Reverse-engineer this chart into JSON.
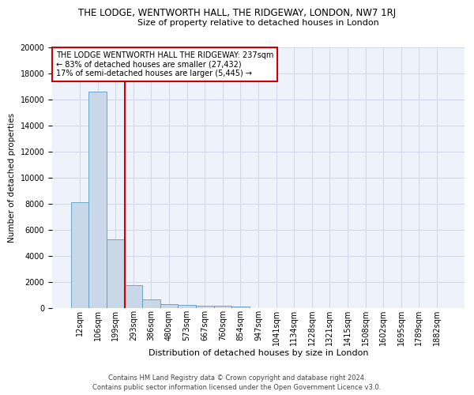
{
  "title": "THE LODGE, WENTWORTH HALL, THE RIDGEWAY, LONDON, NW7 1RJ",
  "subtitle": "Size of property relative to detached houses in London",
  "xlabel": "Distribution of detached houses by size in London",
  "ylabel": "Number of detached properties",
  "footer1": "Contains HM Land Registry data © Crown copyright and database right 2024.",
  "footer2": "Contains public sector information licensed under the Open Government Licence v3.0.",
  "categories": [
    "12sqm",
    "106sqm",
    "199sqm",
    "293sqm",
    "386sqm",
    "480sqm",
    "573sqm",
    "667sqm",
    "760sqm",
    "854sqm",
    "947sqm",
    "1041sqm",
    "1134sqm",
    "1228sqm",
    "1321sqm",
    "1415sqm",
    "1508sqm",
    "1602sqm",
    "1695sqm",
    "1789sqm",
    "1882sqm"
  ],
  "values": [
    8100,
    16600,
    5300,
    1750,
    650,
    330,
    270,
    210,
    170,
    140,
    0,
    0,
    0,
    0,
    0,
    0,
    0,
    0,
    0,
    0,
    0
  ],
  "bar_color": "#c8d8e8",
  "bar_edge_color": "#5a9abf",
  "grid_color": "#d0d8e8",
  "background_color": "#eef2fb",
  "ylim": [
    0,
    20000
  ],
  "yticks": [
    0,
    2000,
    4000,
    6000,
    8000,
    10000,
    12000,
    14000,
    16000,
    18000,
    20000
  ],
  "annotation_text": "THE LODGE WENTWORTH HALL THE RIDGEWAY: 237sqm\n← 83% of detached houses are smaller (27,432)\n17% of semi-detached houses are larger (5,445) →",
  "vline_color": "#cc0000",
  "annotation_box_color": "#ffffff",
  "annotation_box_edge": "#cc0000",
  "title_fontsize": 8.5,
  "subtitle_fontsize": 8,
  "ylabel_fontsize": 7.5,
  "xlabel_fontsize": 8,
  "tick_fontsize": 7,
  "annot_fontsize": 7,
  "footer_fontsize": 6
}
